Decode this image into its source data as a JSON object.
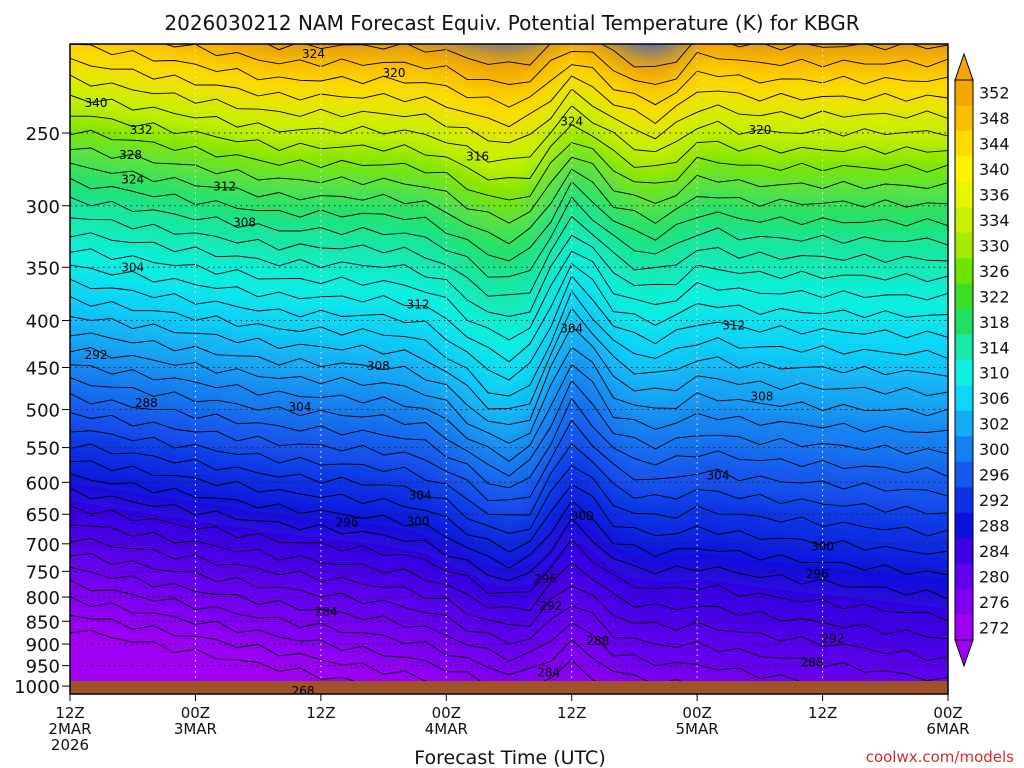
{
  "chart_data": {
    "type": "heatmap",
    "title": "2026030212 NAM Forecast Equiv. Potential Temperature (K) for KBGR",
    "xlabel": "Forecast Time (UTC)",
    "credit": "coolwx.com/models",
    "y_scale": "log",
    "ylim": [
      1020,
      200
    ],
    "y_ticks": [
      250,
      300,
      350,
      400,
      450,
      500,
      550,
      600,
      650,
      700,
      750,
      800,
      850,
      900,
      950,
      1000
    ],
    "x_hours_range": [
      0,
      84
    ],
    "x_ticks": [
      {
        "hour": 0,
        "lines": [
          "12Z",
          "2MAR",
          "2026"
        ]
      },
      {
        "hour": 12,
        "lines": [
          "00Z",
          "3MAR"
        ]
      },
      {
        "hour": 24,
        "lines": [
          "12Z"
        ]
      },
      {
        "hour": 36,
        "lines": [
          "00Z",
          "4MAR"
        ]
      },
      {
        "hour": 48,
        "lines": [
          "12Z"
        ]
      },
      {
        "hour": 60,
        "lines": [
          "00Z",
          "5MAR"
        ]
      },
      {
        "hour": 72,
        "lines": [
          "12Z"
        ]
      },
      {
        "hour": 84,
        "lines": [
          "00Z",
          "6MAR"
        ]
      }
    ],
    "colorbar": {
      "labels": [
        352,
        348,
        344,
        340,
        336,
        334,
        330,
        326,
        322,
        318,
        314,
        310,
        306,
        302,
        300,
        296,
        292,
        288,
        284,
        280,
        276,
        272
      ],
      "colors": [
        "#f5a500",
        "#fdc000",
        "#fedc00",
        "#fef400",
        "#e6f500",
        "#c8f000",
        "#a4ec00",
        "#6fe400",
        "#3edc24",
        "#20e064",
        "#18e8a8",
        "#10f0e0",
        "#10d4f8",
        "#14acf4",
        "#1480f0",
        "#1458ec",
        "#1030e4",
        "#0c10dc",
        "#3c00e4",
        "#6000ec",
        "#8000f0",
        "#a000f4"
      ],
      "extend": "both",
      "units": "K"
    },
    "contour_labels": [
      {
        "h": 2.5,
        "p": 232,
        "text": "340"
      },
      {
        "h": 6.8,
        "p": 248,
        "text": "332"
      },
      {
        "h": 5.8,
        "p": 264,
        "text": "328"
      },
      {
        "h": 6.0,
        "p": 281,
        "text": "324"
      },
      {
        "h": 14.8,
        "p": 286,
        "text": "312"
      },
      {
        "h": 16.7,
        "p": 313,
        "text": "308"
      },
      {
        "h": 6.0,
        "p": 350,
        "text": "304"
      },
      {
        "h": 2.5,
        "p": 436,
        "text": "292"
      },
      {
        "h": 7.3,
        "p": 492,
        "text": "288"
      },
      {
        "h": 23.3,
        "p": 205,
        "text": "324"
      },
      {
        "h": 31.0,
        "p": 215,
        "text": "320"
      },
      {
        "h": 39.0,
        "p": 265,
        "text": "316"
      },
      {
        "h": 48.0,
        "p": 243,
        "text": "324"
      },
      {
        "h": 66.0,
        "p": 248,
        "text": "320"
      },
      {
        "h": 33.3,
        "p": 384,
        "text": "312"
      },
      {
        "h": 63.5,
        "p": 405,
        "text": "312"
      },
      {
        "h": 48.0,
        "p": 408,
        "text": "304"
      },
      {
        "h": 29.5,
        "p": 448,
        "text": "308"
      },
      {
        "h": 22.0,
        "p": 497,
        "text": "304"
      },
      {
        "h": 66.2,
        "p": 484,
        "text": "308"
      },
      {
        "h": 33.5,
        "p": 620,
        "text": "304"
      },
      {
        "h": 62.0,
        "p": 590,
        "text": "304"
      },
      {
        "h": 33.3,
        "p": 662,
        "text": "300"
      },
      {
        "h": 26.5,
        "p": 664,
        "text": "296"
      },
      {
        "h": 49.0,
        "p": 653,
        "text": "300"
      },
      {
        "h": 72.0,
        "p": 705,
        "text": "300"
      },
      {
        "h": 45.5,
        "p": 765,
        "text": "296"
      },
      {
        "h": 71.5,
        "p": 755,
        "text": "296"
      },
      {
        "h": 46.0,
        "p": 818,
        "text": "292"
      },
      {
        "h": 73.0,
        "p": 888,
        "text": "292"
      },
      {
        "h": 24.5,
        "p": 830,
        "text": "284"
      },
      {
        "h": 50.5,
        "p": 893,
        "text": "288"
      },
      {
        "h": 71.0,
        "p": 943,
        "text": "288"
      },
      {
        "h": 45.8,
        "p": 967,
        "text": "284"
      },
      {
        "h": 22.3,
        "p": 1012,
        "text": "268"
      }
    ]
  }
}
